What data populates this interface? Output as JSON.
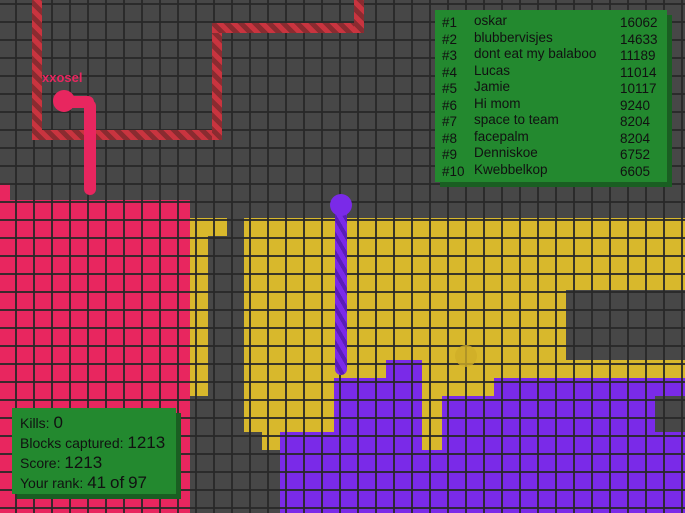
{
  "leaderboard": [
    {
      "rank": "#1",
      "name": "oskar",
      "score": "16062"
    },
    {
      "rank": "#2",
      "name": "blubbervisjes",
      "score": "14633"
    },
    {
      "rank": "#3",
      "name": "dont eat my balaboo",
      "score": "11189"
    },
    {
      "rank": "#4",
      "name": "Lucas",
      "score": "11014"
    },
    {
      "rank": "#5",
      "name": "Jamie",
      "score": "10117"
    },
    {
      "rank": "#6",
      "name": "Hi mom",
      "score": "9240"
    },
    {
      "rank": "#7",
      "name": "space to team",
      "score": "8204"
    },
    {
      "rank": "#8",
      "name": "facepalm",
      "score": "8204"
    },
    {
      "rank": "#9",
      "name": "Denniskoe",
      "score": "6752"
    },
    {
      "rank": "#10",
      "name": "Kwebbelkop",
      "score": "6605"
    }
  ],
  "stats": {
    "kills_label": "Kills:",
    "kills": "0",
    "blocks_label": "Blocks captured:",
    "blocks": "1213",
    "score_label": "Score:",
    "score": "1213",
    "rank_label": "Your rank:",
    "rank": "41",
    "of_label": "of",
    "total": "97"
  },
  "players": {
    "enemy_name": "xxosel"
  },
  "colors": {
    "panel": "#23892f",
    "pink": "#e8265f",
    "yellow": "#d8b82c",
    "purple": "#7a2ae8",
    "background": "#3b3b3b"
  }
}
